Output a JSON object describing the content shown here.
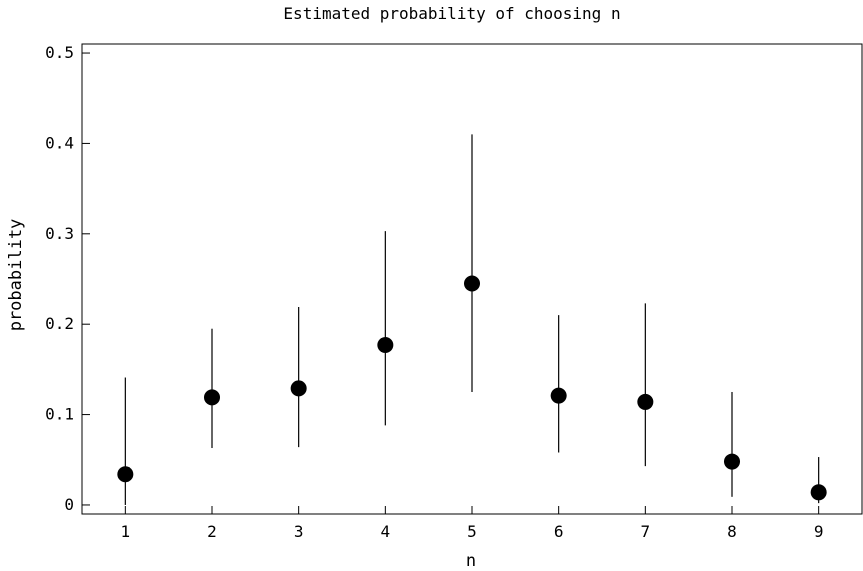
{
  "chart_data": {
    "type": "scatter",
    "title": "Estimated probability of choosing n",
    "xlabel": "n",
    "ylabel": "probability",
    "xlim": [
      0.5,
      9.5
    ],
    "ylim": [
      -0.01,
      0.51
    ],
    "xticks": [
      "1",
      "2",
      "3",
      "4",
      "5",
      "6",
      "7",
      "8",
      "9"
    ],
    "yticks": [
      "0",
      "0.1",
      "0.2",
      "0.3",
      "0.4",
      "0.5"
    ],
    "grid": false,
    "legend": "none",
    "series": [
      {
        "points": [
          {
            "x": 1,
            "y": 0.034,
            "lower": 0.0,
            "upper": 0.141
          },
          {
            "x": 2,
            "y": 0.119,
            "lower": 0.063,
            "upper": 0.195
          },
          {
            "x": 3,
            "y": 0.129,
            "lower": 0.064,
            "upper": 0.219
          },
          {
            "x": 4,
            "y": 0.177,
            "lower": 0.088,
            "upper": 0.303
          },
          {
            "x": 5,
            "y": 0.245,
            "lower": 0.125,
            "upper": 0.41
          },
          {
            "x": 6,
            "y": 0.121,
            "lower": 0.058,
            "upper": 0.21
          },
          {
            "x": 7,
            "y": 0.114,
            "lower": 0.043,
            "upper": 0.223
          },
          {
            "x": 8,
            "y": 0.048,
            "lower": 0.009,
            "upper": 0.125
          },
          {
            "x": 9,
            "y": 0.014,
            "lower": 0.002,
            "upper": 0.053
          }
        ]
      }
    ],
    "colors": {
      "marker": "#000000",
      "axis": "#000000",
      "background": "#ffffff"
    }
  }
}
